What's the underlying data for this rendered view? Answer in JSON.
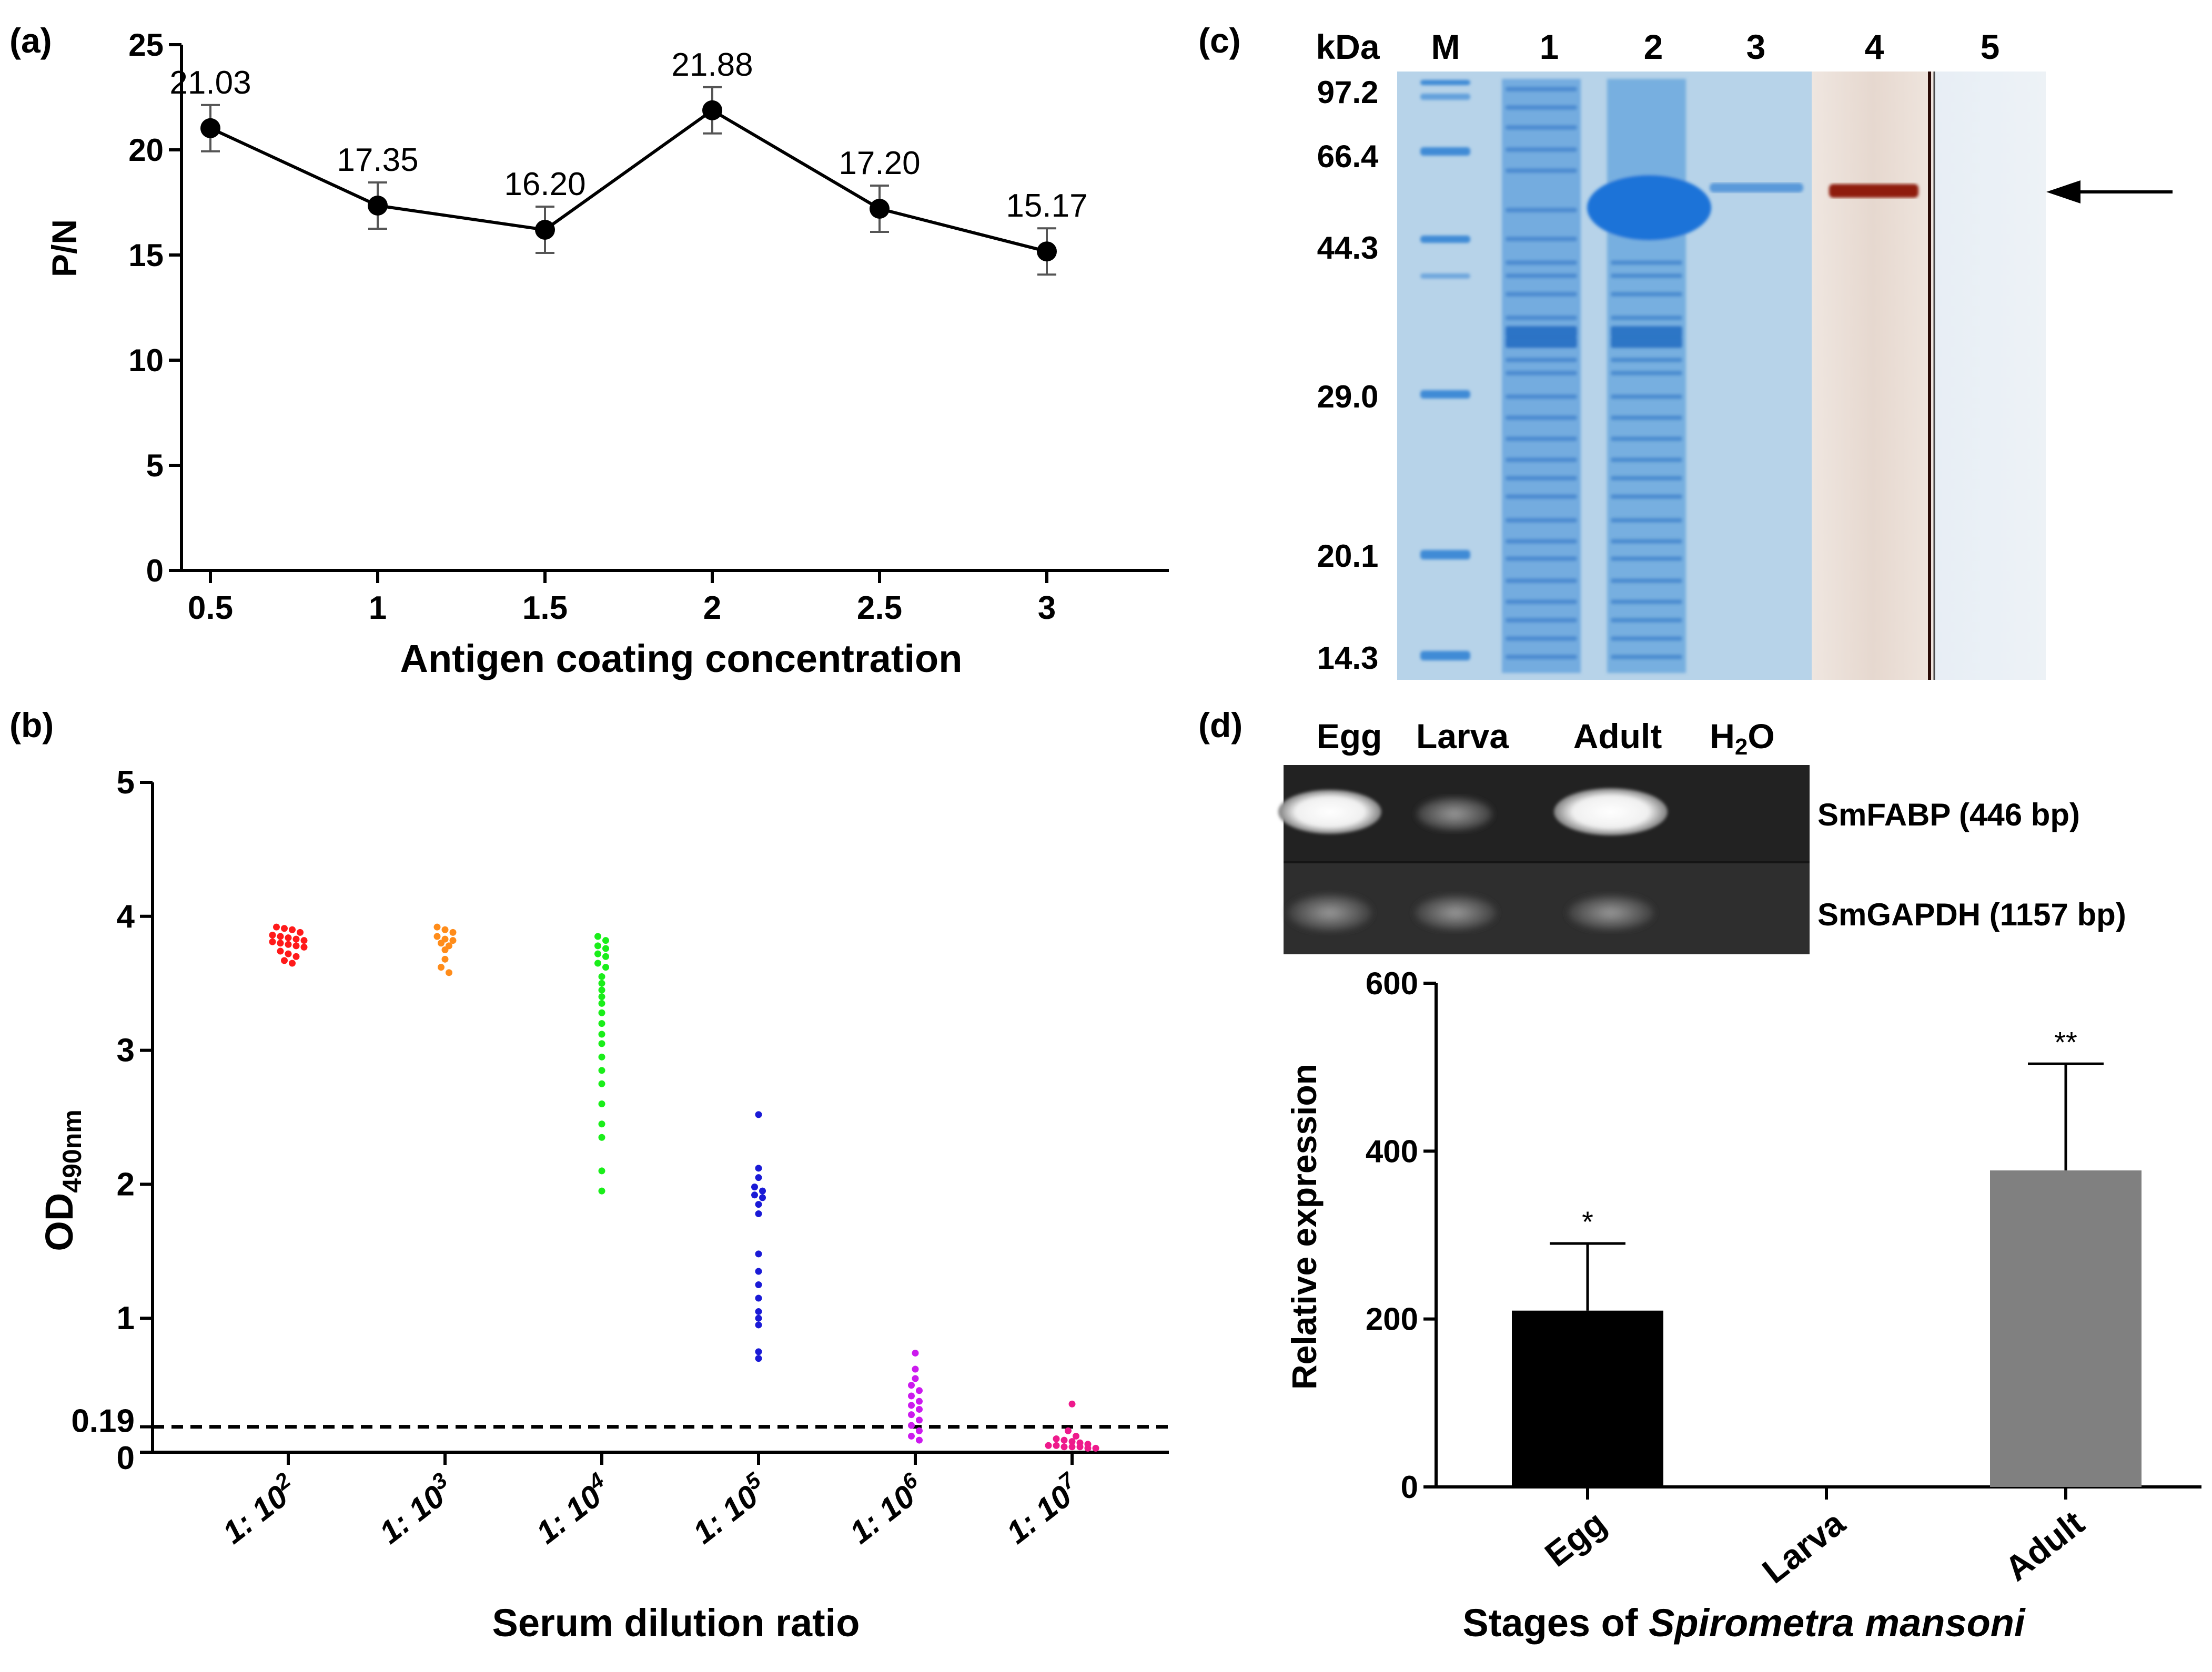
{
  "panel_labels": {
    "a": "(a)",
    "b": "(b)",
    "c": "(c)",
    "d": "(d)"
  },
  "colors": {
    "axis": "#000000",
    "line": "#000000",
    "error_bar": "#555555",
    "dashed": "#000000",
    "b_series": [
      "#ff1a1a",
      "#ff8c1a",
      "#1aee1a",
      "#1a1ad6",
      "#cc1aee",
      "#ee1a8c"
    ],
    "bar_egg": "#000000",
    "bar_larva": "#000000",
    "bar_adult": "#808080",
    "gel_bg": "#bcd6ea",
    "gel_dark": "#2e7bcc",
    "gel_mid": "#5e9fdb",
    "blot_bg": "#e9dcd4",
    "blot_band": "#8a1d12",
    "agarose_bg": "#202020",
    "agarose_band": "#f4f4f4"
  },
  "chart_data": [
    {
      "id": "a",
      "type": "line",
      "xlabel": "Antigen coating concentration",
      "ylabel": "P/N",
      "x": [
        "0.5",
        "1",
        "1.5",
        "2",
        "2.5",
        "3"
      ],
      "y": [
        21.03,
        17.35,
        16.2,
        21.88,
        17.2,
        15.17
      ],
      "data_labels": [
        "21.03",
        "17.35",
        "16.20",
        "21.88",
        "17.20",
        "15.17"
      ],
      "err": [
        1.1,
        1.1,
        1.1,
        1.1,
        1.1,
        1.1
      ],
      "ylim": [
        0,
        25
      ],
      "yticks": [
        0,
        5,
        10,
        15,
        20,
        25
      ]
    },
    {
      "id": "b",
      "type": "scatter",
      "xlabel": "Serum dilution ratio",
      "ylabel_main": "OD",
      "ylabel_sub": "490nm",
      "categories": [
        {
          "base": "1: 10",
          "exp": "2"
        },
        {
          "base": "1: 10",
          "exp": "3"
        },
        {
          "base": "1: 10",
          "exp": "4"
        },
        {
          "base": "1: 10",
          "exp": "5"
        },
        {
          "base": "1: 10",
          "exp": "6"
        },
        {
          "base": "1: 10",
          "exp": "7"
        }
      ],
      "ylim": [
        0,
        5
      ],
      "yticks": [
        0,
        1,
        2,
        3,
        4,
        5
      ],
      "cutoff": 0.19,
      "cutoff_label": "0.19",
      "series": [
        {
          "name": "1:10^2",
          "values": [
            3.92,
            3.91,
            3.9,
            3.88,
            3.86,
            3.85,
            3.84,
            3.83,
            3.82,
            3.81,
            3.8,
            3.79,
            3.78,
            3.77,
            3.74,
            3.72,
            3.7,
            3.67,
            3.65
          ]
        },
        {
          "name": "1:10^3",
          "values": [
            3.92,
            3.9,
            3.88,
            3.85,
            3.83,
            3.82,
            3.8,
            3.78,
            3.75,
            3.68,
            3.62,
            3.58
          ]
        },
        {
          "name": "1:10^4",
          "values": [
            3.85,
            3.82,
            3.78,
            3.76,
            3.72,
            3.7,
            3.65,
            3.62,
            3.55,
            3.5,
            3.45,
            3.4,
            3.35,
            3.28,
            3.2,
            3.12,
            3.05,
            2.95,
            2.85,
            2.75,
            2.6,
            2.45,
            2.35,
            2.1,
            1.95
          ]
        },
        {
          "name": "1:10^5",
          "values": [
            2.52,
            2.12,
            2.05,
            1.98,
            1.95,
            1.92,
            1.9,
            1.85,
            1.78,
            1.48,
            1.35,
            1.25,
            1.15,
            1.05,
            1.0,
            0.95,
            0.75,
            0.7
          ]
        },
        {
          "name": "1:10^6",
          "values": [
            0.74,
            0.62,
            0.55,
            0.5,
            0.46,
            0.42,
            0.38,
            0.35,
            0.32,
            0.28,
            0.24,
            0.2,
            0.16,
            0.12,
            0.09
          ]
        },
        {
          "name": "1:10^7",
          "values": [
            0.36,
            0.16,
            0.12,
            0.1,
            0.09,
            0.08,
            0.07,
            0.06,
            0.05,
            0.05,
            0.04,
            0.04,
            0.04,
            0.03,
            0.03
          ]
        }
      ]
    },
    {
      "id": "d",
      "type": "bar",
      "xlabel_prefix": "Stages of ",
      "xlabel_italic": "Spirometra mansoni",
      "ylabel": "Relative expression",
      "categories": [
        "Egg",
        "Larva",
        "Adult"
      ],
      "values": [
        210,
        0,
        377
      ],
      "err": [
        80,
        0,
        127
      ],
      "significance": [
        "*",
        "",
        "**"
      ],
      "ylim": [
        0,
        600
      ],
      "yticks": [
        0,
        200,
        400,
        600
      ]
    }
  ],
  "gel_c": {
    "header_kda": "kDa",
    "lane_labels": [
      "M",
      "1",
      "2",
      "3",
      "4",
      "5"
    ],
    "markers": [
      "97.2",
      "66.4",
      "44.3",
      "29.0",
      "20.1",
      "14.3"
    ]
  },
  "gel_d": {
    "lane_labels": [
      "Egg",
      "Larva",
      "Adult"
    ],
    "h2o_base": "H",
    "h2o_sub": "2",
    "h2o_tail": "O",
    "row_labels": [
      "SmFABP (446 bp)",
      "SmGAPDH (1157 bp)"
    ]
  }
}
